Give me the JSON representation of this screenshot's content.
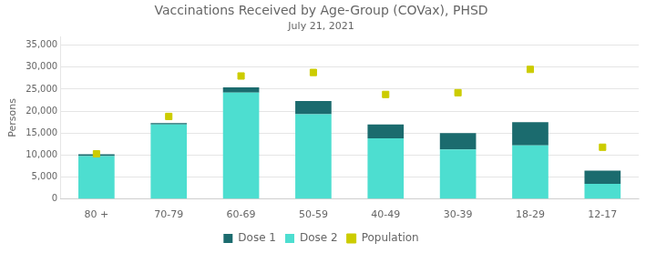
{
  "chart_data": {
    "type": "bar",
    "title": "Vaccinations Received by Age-Group (COVax), PHSD",
    "subtitle": "July 21, 2021",
    "ylabel": "Persons",
    "categories": [
      "80 +",
      "70-79",
      "60-69",
      "50-59",
      "40-49",
      "30-39",
      "18-29",
      "12-17"
    ],
    "series": [
      {
        "name": "Dose 2",
        "type": "bar",
        "color": "#4DDED0",
        "values": [
          9800,
          17000,
          24200,
          19300,
          13800,
          11300,
          12200,
          3500
        ]
      },
      {
        "name": "Dose 1",
        "type": "bar",
        "color": "#1B6B6E",
        "values": [
          400,
          300,
          1200,
          3000,
          3200,
          3700,
          5300,
          3000
        ]
      },
      {
        "name": "Population",
        "type": "line",
        "marker": "square",
        "line_style": "none",
        "color": "#CCCC00",
        "values": [
          10300,
          18800,
          28000,
          28800,
          23800,
          24200,
          29500,
          11800
        ]
      }
    ],
    "stacked": true,
    "ylim": [
      0,
      37000
    ],
    "yticks": [
      0,
      {
        "value": 5000,
        "label": "5,000"
      },
      {
        "value": 10000,
        "label": "10,000"
      },
      {
        "value": 15000,
        "label": "15,000"
      },
      {
        "value": 20000,
        "label": "20,000"
      },
      {
        "value": 25000,
        "label": "25,000"
      },
      {
        "value": 30000,
        "label": "30,000"
      },
      {
        "value": 35000,
        "label": "35,000"
      }
    ],
    "grid": true,
    "legend": "bottom"
  }
}
